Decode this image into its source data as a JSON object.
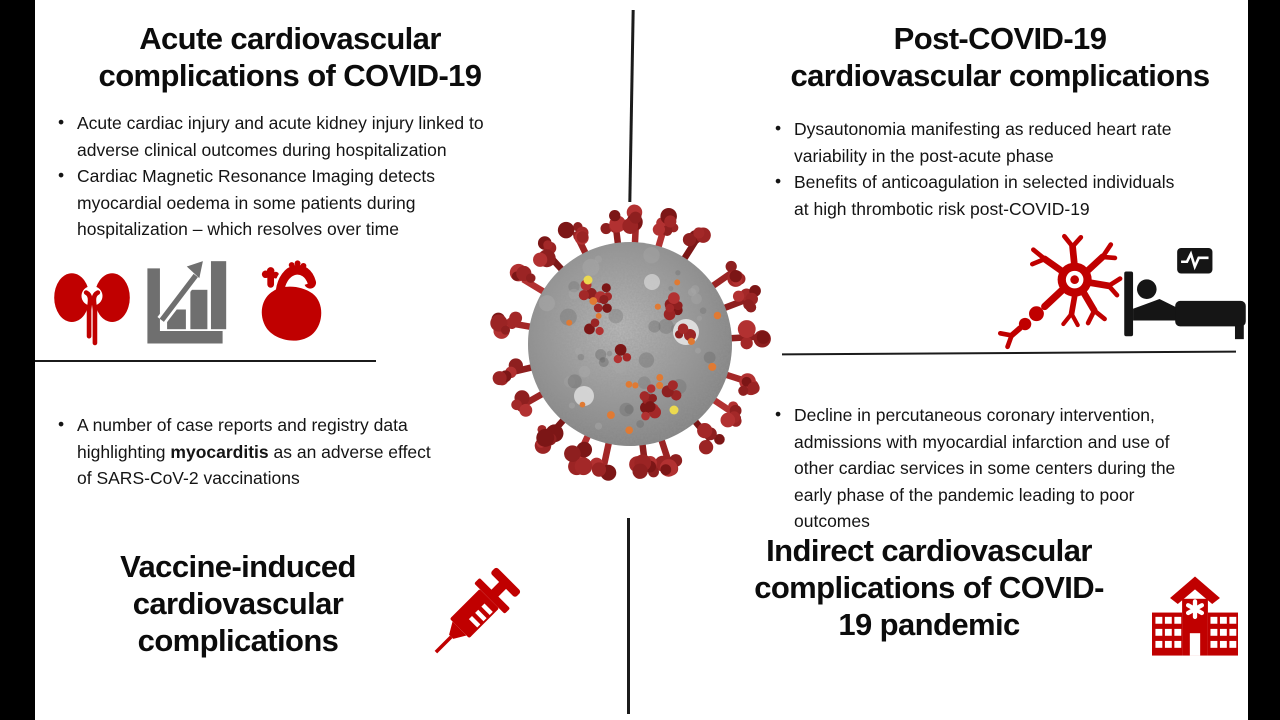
{
  "page": {
    "background": "#ffffff",
    "pillar_bars_color": "#000000"
  },
  "colors": {
    "accent_red": "#c00000",
    "icon_gray": "#6f6f6f",
    "icon_black": "#151515",
    "text_black": "#0f0f0f"
  },
  "center": {
    "image_name": "sars-cov-2-virion-illustration"
  },
  "quadrants": {
    "top_left": {
      "title": "Acute cardiovascular complications of COVID-19",
      "title_lines": [
        "Acute cardiovascular",
        "complications of COVID-19"
      ],
      "bullets": [
        {
          "lines": [
            "Acute cardiac injury and acute kidney injury linked to",
            "adverse clinical outcomes during hospitalization"
          ]
        },
        {
          "lines": [
            "Cardiac Magnetic Resonance Imaging detects",
            "myocardial oedema in some patients during",
            "hospitalization – which resolves over time"
          ]
        }
      ],
      "icons": [
        "kidneys-icon",
        "bar-chart-icon",
        "heart-icon"
      ]
    },
    "top_right": {
      "title": "Post-COVID-19 cardiovascular complications",
      "title_lines": [
        "Post-COVID-19",
        "cardiovascular complications"
      ],
      "bullets": [
        {
          "lines": [
            "Dysautonomia manifesting as reduced heart rate",
            "variability in the post-acute phase"
          ]
        },
        {
          "lines": [
            "Benefits of anticoagulation in selected individuals",
            "at high thrombotic risk post-COVID-19"
          ]
        }
      ],
      "icons": [
        "neuron-icon",
        "hospital-bed-icon"
      ]
    },
    "bottom_left": {
      "title": "Vaccine-induced cardiovascular complications",
      "title_lines": [
        "Vaccine-induced",
        "cardiovascular",
        "complications"
      ],
      "bullet": {
        "line1": "A number of case reports and registry data",
        "line2_prefix": "highlighting ",
        "line2_bold": "myocarditis",
        "line2_suffix": " as an adverse effect",
        "line3": "of SARS-CoV-2 vaccinations"
      },
      "icons": [
        "syringe-icon"
      ]
    },
    "bottom_right": {
      "title": "Indirect cardiovascular complications of COVID-19 pandemic",
      "title_lines": [
        "Indirect cardiovascular",
        "complications of COVID-",
        "19 pandemic"
      ],
      "bullets": [
        {
          "lines": [
            "Decline in percutaneous coronary intervention,",
            "admissions with myocardial infarction and use of",
            "other cardiac services in some centers during the",
            "early phase of the pandemic leading to poor",
            "outcomes"
          ]
        }
      ],
      "icons": [
        "hospital-building-icon"
      ]
    }
  }
}
